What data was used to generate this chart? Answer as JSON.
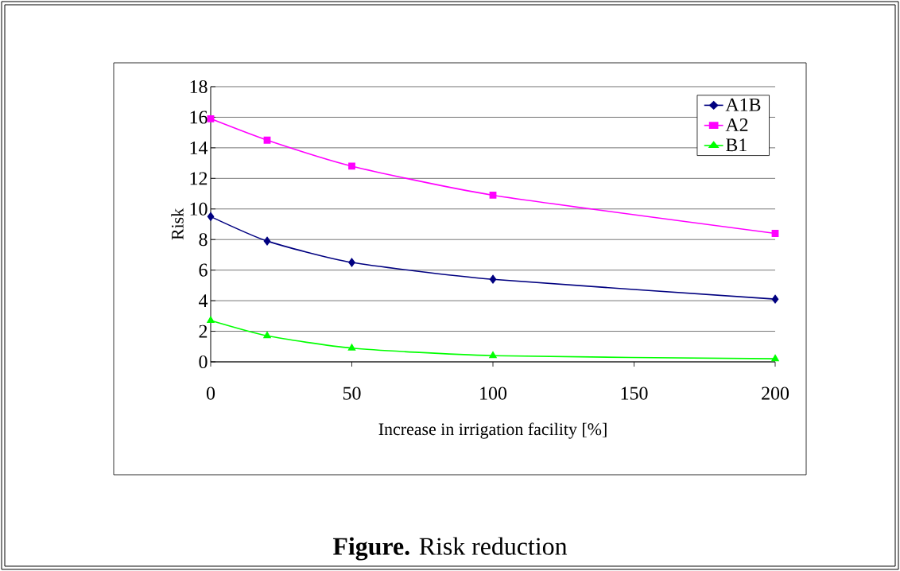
{
  "chart_data": {
    "type": "line",
    "title": "**Figure.**  Risk reduction",
    "xlabel": "Increase in irrigation facility [%]",
    "ylabel": "Risk",
    "x": [
      0,
      20,
      50,
      100,
      200
    ],
    "series": [
      {
        "name": "A1B",
        "color": "#000080",
        "marker": "diamond",
        "values": [
          9.5,
          7.9,
          6.5,
          5.4,
          4.1
        ]
      },
      {
        "name": "A2",
        "color": "#ff00ff",
        "marker": "square",
        "values": [
          15.9,
          14.5,
          12.8,
          10.9,
          8.4
        ]
      },
      {
        "name": "B1",
        "color": "#00ff00",
        "marker": "triangle",
        "values": [
          2.7,
          1.7,
          0.9,
          0.4,
          0.2
        ]
      }
    ],
    "xlim": [
      0,
      200
    ],
    "xticks": [
      0,
      50,
      100,
      150,
      200
    ],
    "ylim": [
      0,
      18
    ],
    "yticks": [
      0,
      2,
      4,
      6,
      8,
      10,
      12,
      14,
      16,
      18
    ],
    "grid": "y",
    "legend": "top right",
    "line_style": "solid"
  }
}
